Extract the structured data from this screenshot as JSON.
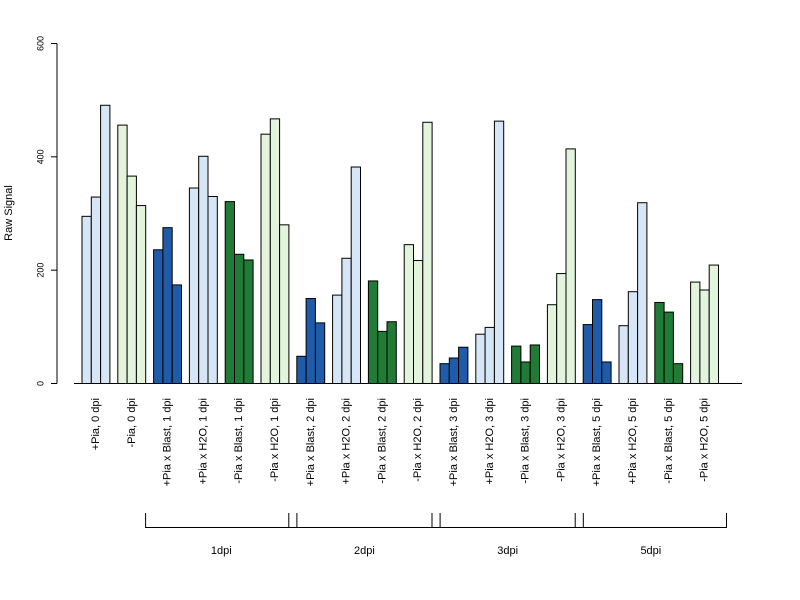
{
  "chart_data": {
    "type": "bar",
    "title": "",
    "xlabel": "",
    "ylabel": "Raw Signal",
    "ylim": [
      0,
      600
    ],
    "yticks": [
      0,
      200,
      400,
      600
    ],
    "grid": false,
    "legend": "none",
    "colors": {
      "pale_blue": "#d6e6f6",
      "pale_green": "#e2f5dc",
      "dark_blue": "#1f5ba8",
      "dark_green": "#217a35"
    },
    "categories": [
      "+Pia, 0 dpi",
      "-Pia, 0 dpi",
      "+Pia x Blast, 1 dpi",
      "+Pia x H2O, 1 dpi",
      "-Pia x Blast, 1 dpi",
      "-Pia x H2O, 1 dpi",
      "+Pia x Blast, 2 dpi",
      "+Pia x H2O, 2 dpi",
      "-Pia x Blast, 2 dpi",
      "-Pia x H2O, 2 dpi",
      "+Pia x Blast, 3 dpi",
      "+Pia x H2O, 3 dpi",
      "-Pia x Blast, 3 dpi",
      "-Pia x H2O, 3 dpi",
      "+Pia x Blast, 5 dpi",
      "+Pia x H2O, 5 dpi",
      "-Pia x Blast, 5 dpi",
      "-Pia x H2O, 5 dpi"
    ],
    "category_colors": [
      "pale_blue",
      "pale_green",
      "dark_blue",
      "pale_blue",
      "dark_green",
      "pale_green",
      "dark_blue",
      "pale_blue",
      "dark_green",
      "pale_green",
      "dark_blue",
      "pale_blue",
      "dark_green",
      "pale_green",
      "dark_blue",
      "pale_blue",
      "dark_green",
      "pale_green"
    ],
    "values": [
      [
        295,
        329,
        491
      ],
      [
        456,
        366,
        314
      ],
      [
        236,
        275,
        174
      ],
      [
        345,
        401,
        330
      ],
      [
        321,
        228,
        218
      ],
      [
        440,
        467,
        280
      ],
      [
        48,
        150,
        107
      ],
      [
        156,
        221,
        382
      ],
      [
        181,
        92,
        109
      ],
      [
        245,
        217,
        461
      ],
      [
        35,
        45,
        64
      ],
      [
        87,
        99,
        463
      ],
      [
        66,
        38,
        68
      ],
      [
        139,
        194,
        414
      ],
      [
        104,
        148,
        38
      ],
      [
        102,
        162,
        319
      ],
      [
        143,
        126,
        35
      ],
      [
        179,
        165,
        209
      ]
    ],
    "groups": [
      {
        "label": "1dpi",
        "from": 2,
        "to": 5
      },
      {
        "label": "2dpi",
        "from": 6,
        "to": 9
      },
      {
        "label": "3dpi",
        "from": 10,
        "to": 13
      },
      {
        "label": "5dpi",
        "from": 14,
        "to": 17
      }
    ]
  }
}
